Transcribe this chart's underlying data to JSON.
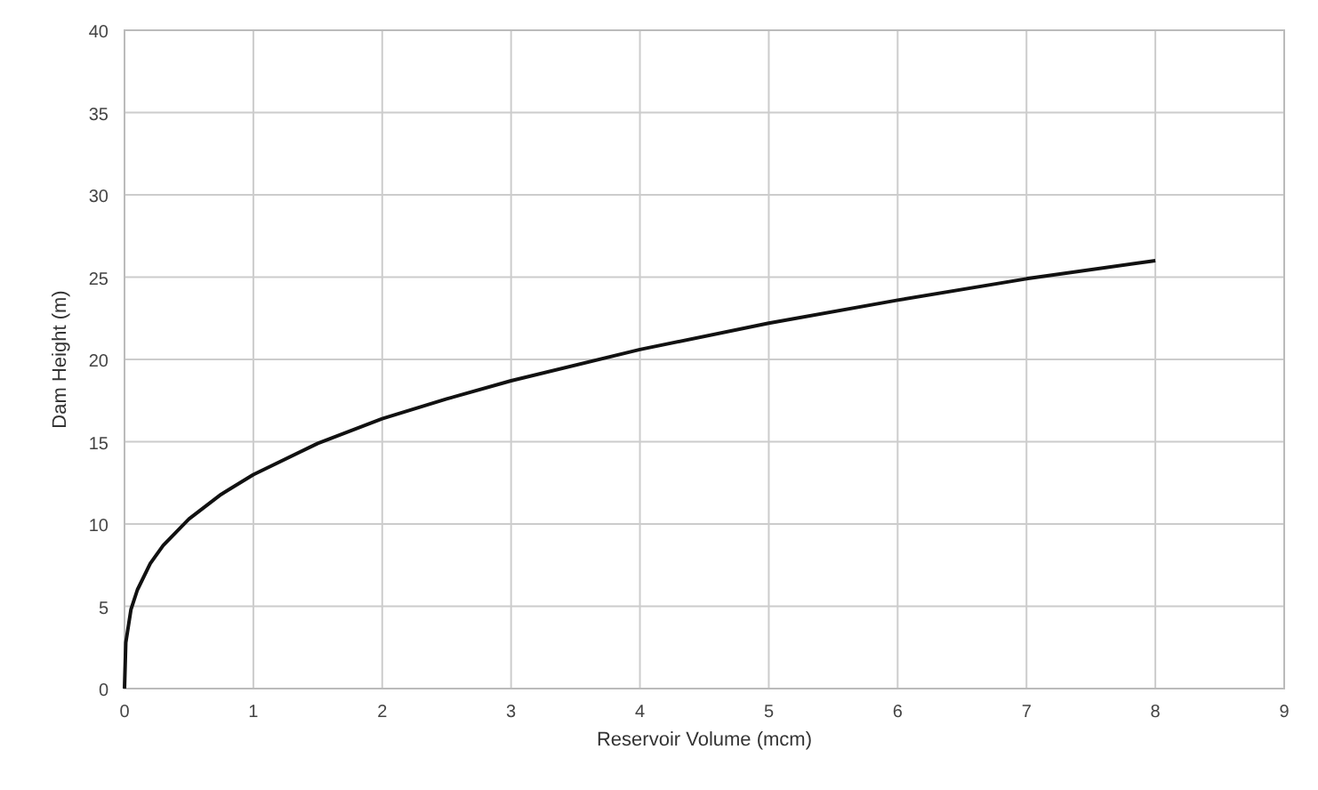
{
  "chart_data": {
    "type": "line",
    "xlabel": "Reservoir Volume (mcm)",
    "ylabel": "Dam Height (m)",
    "x": [
      0,
      0.01,
      0.05,
      0.1,
      0.2,
      0.3,
      0.5,
      0.75,
      1,
      1.5,
      2,
      2.5,
      3,
      4,
      5,
      6,
      7,
      8
    ],
    "series": [
      {
        "color": "#111111",
        "values": [
          0,
          2.8,
          4.8,
          6,
          7.6,
          8.7,
          10.3,
          11.8,
          13,
          14.9,
          16.4,
          17.6,
          18.7,
          20.6,
          22.2,
          23.6,
          24.9,
          26
        ]
      }
    ],
    "xlim": [
      0,
      9
    ],
    "xticks": [
      0,
      1,
      2,
      3,
      4,
      5,
      6,
      7,
      8,
      9
    ],
    "ylim": [
      0,
      40
    ],
    "yticks": [
      0,
      5,
      10,
      15,
      20,
      25,
      30,
      35,
      40
    ],
    "grid": true,
    "marker": "none",
    "line_style": "solid"
  }
}
